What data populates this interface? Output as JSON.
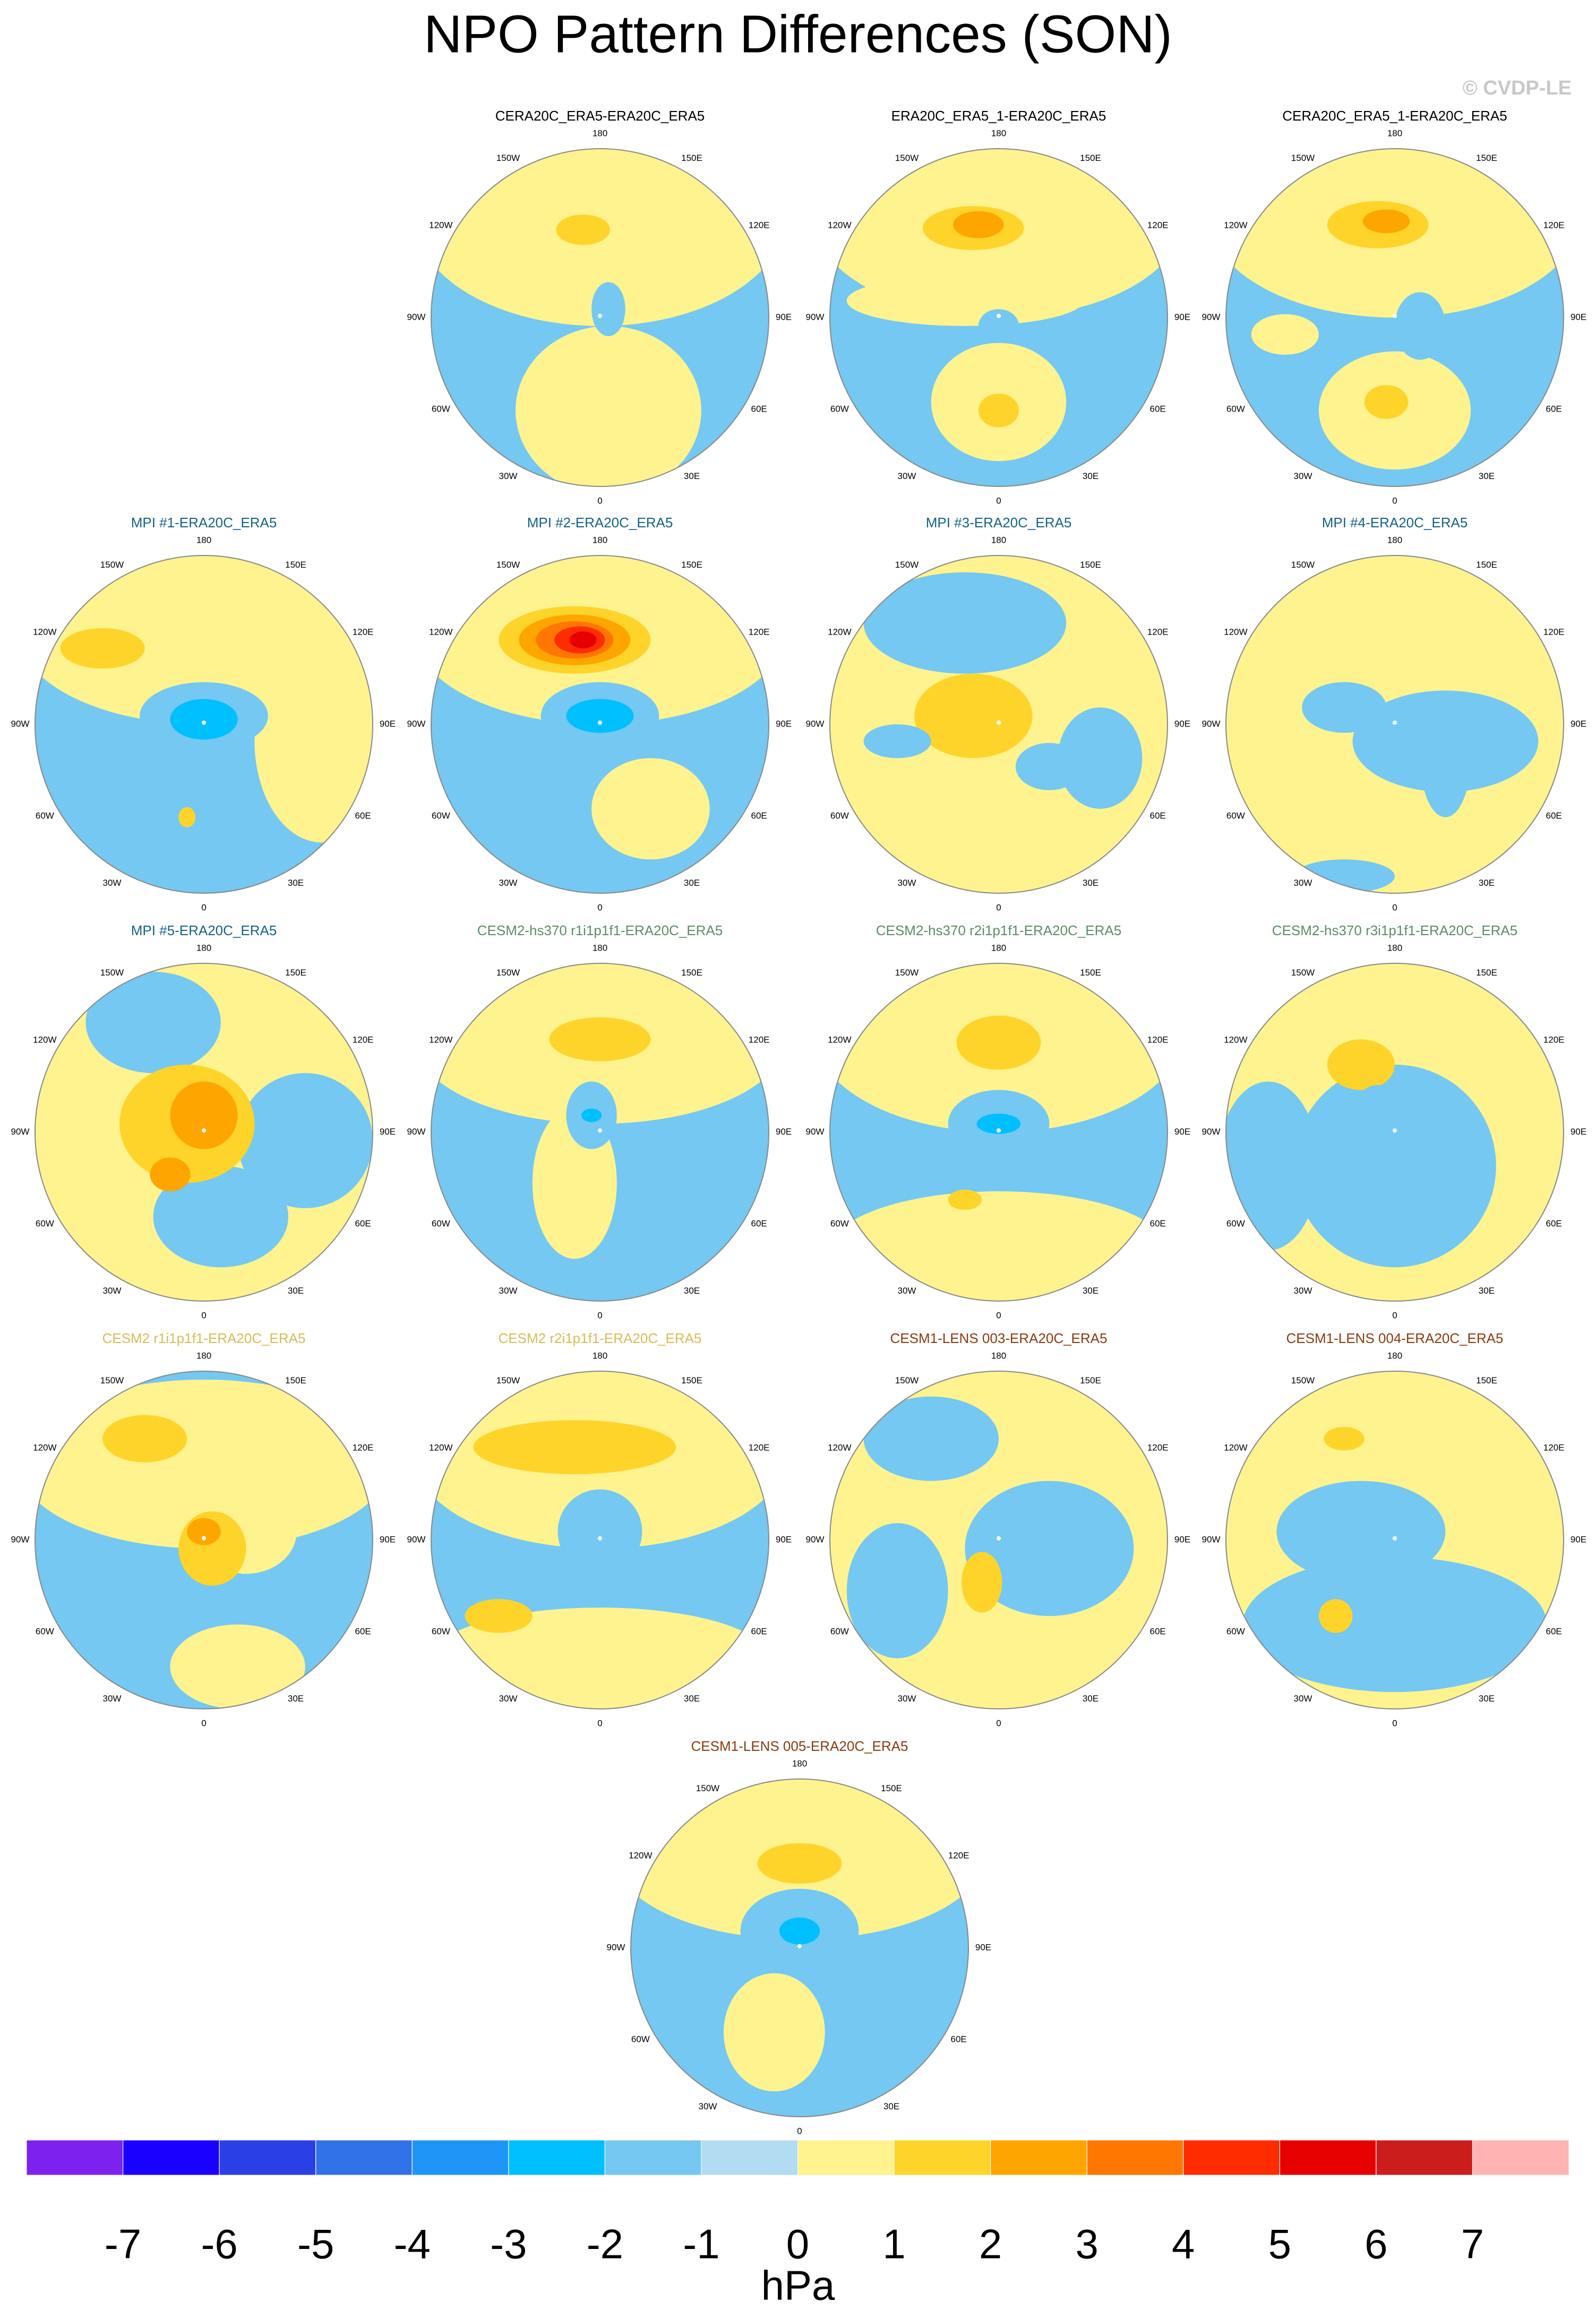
{
  "chart_data": {
    "type": "polar-map-grid",
    "title": "NPO Pattern Differences (SON)",
    "credit": "© CVDP-LE",
    "panels": [
      {
        "title": "CERA20C_ERA5-ERA20C_ERA5",
        "color": "#000000"
      },
      {
        "title": "ERA20C_ERA5_1-ERA20C_ERA5",
        "color": "#000000"
      },
      {
        "title": "CERA20C_ERA5_1-ERA20C_ERA5",
        "color": "#000000"
      },
      {
        "title": "MPI #1-ERA20C_ERA5",
        "color": "#15628a"
      },
      {
        "title": "MPI #2-ERA20C_ERA5",
        "color": "#15628a"
      },
      {
        "title": "MPI #3-ERA20C_ERA5",
        "color": "#15628a"
      },
      {
        "title": "MPI #4-ERA20C_ERA5",
        "color": "#15628a"
      },
      {
        "title": "MPI #5-ERA20C_ERA5",
        "color": "#15628a"
      },
      {
        "title": "CESM2-hs370 r1i1p1f1-ERA20C_ERA5",
        "color": "#5e8c66"
      },
      {
        "title": "CESM2-hs370 r2i1p1f1-ERA20C_ERA5",
        "color": "#5e8c66"
      },
      {
        "title": "CESM2-hs370 r3i1p1f1-ERA20C_ERA5",
        "color": "#5e8c66"
      },
      {
        "title": "CESM2 r1i1p1f1-ERA20C_ERA5",
        "color": "#d8bd55"
      },
      {
        "title": "CESM2 r2i1p1f1-ERA20C_ERA5",
        "color": "#d8bd55"
      },
      {
        "title": "CESM1-LENS 003-ERA20C_ERA5",
        "color": "#8b3a10"
      },
      {
        "title": "CESM1-LENS 004-ERA20C_ERA5",
        "color": "#8b3a10"
      },
      {
        "title": "CESM1-LENS 005-ERA20C_ERA5",
        "color": "#8b3a10"
      }
    ],
    "lon_labels": [
      {
        "value": 180,
        "label": "180"
      },
      {
        "value": 150,
        "label": "150E"
      },
      {
        "value": 120,
        "label": "120E"
      },
      {
        "value": 90,
        "label": "90E"
      },
      {
        "value": 60,
        "label": "60E"
      },
      {
        "value": 30,
        "label": "30E"
      },
      {
        "value": 0,
        "label": "0"
      },
      {
        "value": -30,
        "label": "30W"
      },
      {
        "value": -60,
        "label": "60W"
      },
      {
        "value": -90,
        "label": "90W"
      },
      {
        "value": -120,
        "label": "120W"
      },
      {
        "value": -150,
        "label": "150W"
      }
    ],
    "colorbar": {
      "colors": [
        "#7d22ee",
        "#1a00ff",
        "#2a40e6",
        "#3272e8",
        "#1e96f8",
        "#00bfff",
        "#74c8f2",
        "#b1dcf1",
        "#fff38f",
        "#ffd42a",
        "#ffa500",
        "#ff7700",
        "#ff2c00",
        "#e60000",
        "#cc1d1d",
        "#ffb3b3"
      ],
      "ticks": [
        -7,
        -6,
        -5,
        -4,
        -3,
        -2,
        -1,
        0,
        1,
        2,
        3,
        4,
        5,
        6,
        7
      ],
      "unit": "hPa"
    }
  }
}
